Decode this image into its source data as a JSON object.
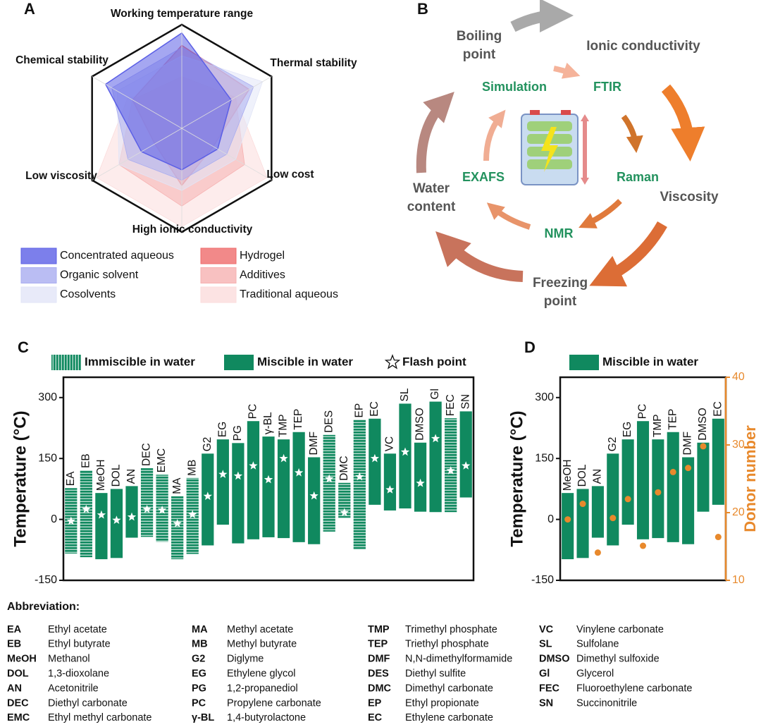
{
  "chart_data": [
    {
      "type": "radar",
      "panel": "A",
      "axes": [
        "Working temperature range",
        "Thermal stability",
        "Low cost",
        "High ionic conductivity",
        "Low viscosity",
        "Chemical stability"
      ],
      "rlim": [
        0,
        1
      ],
      "series": [
        {
          "name": "Concentrated aqueous",
          "color": "#5b5fe6",
          "values": [
            0.92,
            0.55,
            0.4,
            0.4,
            0.45,
            0.85
          ]
        },
        {
          "name": "Organic solvent",
          "color": "#a9adf0",
          "values": [
            0.78,
            0.8,
            0.5,
            0.5,
            0.6,
            0.78
          ]
        },
        {
          "name": "Cosolvents",
          "color": "#e2e5f7",
          "values": [
            0.7,
            0.9,
            0.6,
            0.6,
            0.7,
            0.72
          ]
        },
        {
          "name": "Hydrogel",
          "color": "#ef6b6b",
          "values": [
            0.8,
            0.75,
            0.35,
            0.55,
            0.3,
            0.55
          ]
        },
        {
          "name": "Additives",
          "color": "#f6b1b1",
          "values": [
            0.5,
            0.6,
            0.7,
            0.75,
            0.7,
            0.55
          ]
        },
        {
          "name": "Traditional aqueous",
          "color": "#fbdcdc",
          "values": [
            0.3,
            0.6,
            0.95,
            0.95,
            0.95,
            0.6
          ]
        }
      ]
    },
    {
      "type": "range_bar",
      "panel": "C",
      "ylabel": "Temperature (°C)",
      "legend": {
        "immiscible": "Immiscible in water",
        "miscible": "Miscible in water",
        "flash": "Flash point"
      },
      "color": "#10895f",
      "categories": [
        "EA",
        "EB",
        "MeOH",
        "DOL",
        "AN",
        "DEC",
        "EMC",
        "MA",
        "MB",
        "G2",
        "EG",
        "PG",
        "PC",
        "γ-BL",
        "TMP",
        "TEP",
        "DMF",
        "DES",
        "DMC",
        "EP",
        "EC",
        "VC",
        "SL",
        "DMSO",
        "Gl",
        "FEC",
        "SN"
      ],
      "low": [
        -84,
        -93,
        -98,
        -95,
        -45,
        -43,
        -55,
        -98,
        -85,
        -64,
        -13,
        -59,
        -49,
        -44,
        -46,
        -56,
        -61,
        -30,
        4,
        -73,
        36,
        22,
        27,
        19,
        18,
        18,
        54
      ],
      "high": [
        77,
        121,
        65,
        75,
        82,
        126,
        110,
        57,
        102,
        162,
        197,
        188,
        242,
        204,
        197,
        215,
        153,
        208,
        90,
        245,
        248,
        162,
        285,
        189,
        290,
        249,
        266
      ],
      "flash": [
        -4,
        25,
        11,
        -2,
        6,
        25,
        23,
        -10,
        12,
        57,
        111,
        107,
        132,
        98,
        150,
        115,
        58,
        100,
        17,
        105,
        150,
        73,
        166,
        89,
        199,
        120,
        132
      ],
      "miscible": [
        false,
        false,
        true,
        true,
        true,
        false,
        false,
        false,
        false,
        true,
        true,
        true,
        true,
        true,
        true,
        true,
        true,
        false,
        false,
        false,
        true,
        true,
        true,
        true,
        true,
        false,
        true
      ],
      "ylim": [
        -150,
        350
      ],
      "yticks": [
        -150,
        0,
        150,
        300
      ]
    },
    {
      "type": "range_bar_dots",
      "panel": "D",
      "ylabel": "Temperature (°C)",
      "legend": "Miscible in water",
      "color": "#10895f",
      "dot_color": "#e8892c",
      "categories": [
        "MeOH",
        "DOL",
        "AN",
        "G2",
        "EG",
        "PC",
        "TMP",
        "TEP",
        "DMF",
        "DMSO",
        "EC"
      ],
      "low": [
        -98,
        -95,
        -45,
        -64,
        -13,
        -49,
        -46,
        -56,
        -61,
        19,
        36
      ],
      "high": [
        65,
        75,
        82,
        162,
        197,
        242,
        197,
        215,
        153,
        189,
        248
      ],
      "donor_number": [
        19,
        21.3,
        14.1,
        19.2,
        22,
        15.1,
        23,
        26,
        26.6,
        29.8,
        16.4
      ],
      "ylim": [
        -150,
        350
      ],
      "yticks": [
        -150,
        0,
        150,
        300
      ],
      "y2label": "Donor number",
      "y2lim": [
        10,
        40
      ],
      "y2ticks": [
        10,
        20,
        30,
        40
      ]
    }
  ],
  "diagram": {
    "panel": "B",
    "outer_labels": [
      [
        "Boiling",
        "point"
      ],
      [
        "Ionic conductivity"
      ],
      [
        "Viscosity"
      ],
      [
        "Freezing",
        "point"
      ],
      [
        "Water",
        "content"
      ]
    ],
    "inner_labels": [
      "Simulation",
      "FTIR",
      "Raman",
      "NMR",
      "EXAFS"
    ]
  },
  "abbreviations": {
    "title": "Abbreviation:",
    "columns": [
      [
        [
          "EA",
          "Ethyl acetate"
        ],
        [
          "EB",
          "Ethyl butyrate"
        ],
        [
          "MeOH",
          "Methanol"
        ],
        [
          "DOL",
          "1,3-dioxolane"
        ],
        [
          "AN",
          "Acetonitrile"
        ],
        [
          "DEC",
          "Diethyl carbonate"
        ],
        [
          "EMC",
          "Ethyl methyl carbonate"
        ]
      ],
      [
        [
          "MA",
          "Methyl acetate"
        ],
        [
          "MB",
          "Methyl butyrate"
        ],
        [
          "G2",
          "Diglyme"
        ],
        [
          "EG",
          "Ethylene glycol"
        ],
        [
          "PG",
          "1,2-propanediol"
        ],
        [
          "PC",
          "Propylene carbonate"
        ],
        [
          "γ-BL",
          "1,4-butyrolactone"
        ]
      ],
      [
        [
          "TMP",
          "Trimethyl phosphate"
        ],
        [
          "TEP",
          "Triethyl phosphate"
        ],
        [
          "DMF",
          "N,N-dimethylformamide"
        ],
        [
          "DES",
          "Diethyl sulfite"
        ],
        [
          "DMC",
          "Dimethyl carbonate"
        ],
        [
          "EP",
          "Ethyl propionate"
        ],
        [
          "EC",
          "Ethylene carbonate"
        ]
      ],
      [
        [
          "VC",
          "Vinylene carbonate"
        ],
        [
          "SL",
          "Sulfolane"
        ],
        [
          "DMSO",
          "Dimethyl sulfoxide"
        ],
        [
          "Gl",
          "Glycerol"
        ],
        [
          "FEC",
          "Fluoroethylene carbonate"
        ],
        [
          "SN",
          "Succinonitrile"
        ]
      ]
    ]
  }
}
